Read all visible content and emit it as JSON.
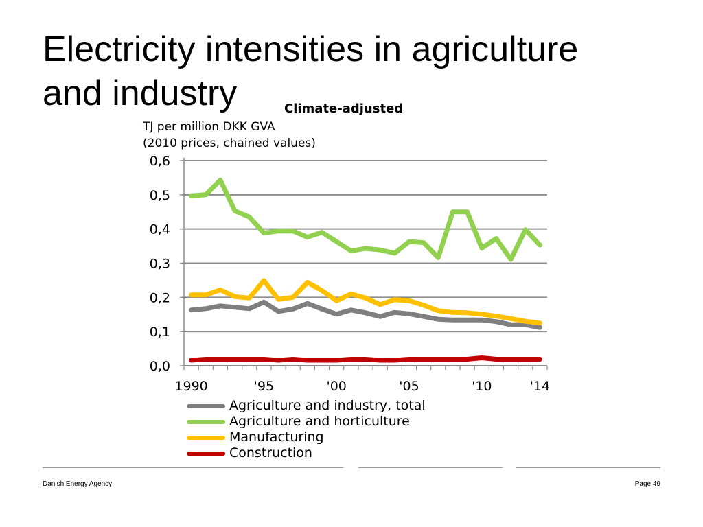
{
  "slide": {
    "title_line1": "Electricity intensities in agriculture",
    "title_line2": "and industry",
    "subtitle": "Climate-adjusted",
    "unit_line1": "TJ per million DKK GVA",
    "unit_line2": "(2010 prices, chained values)"
  },
  "footer": {
    "left": "Danish Energy Agency",
    "right": "Page 49"
  },
  "chart_data": {
    "type": "line",
    "title": "Climate-adjusted",
    "ylabel": "TJ per million DKK GVA (2010 prices, chained values)",
    "xlabel": "",
    "ylim": [
      0,
      0.6
    ],
    "grid": true,
    "legend_position": "bottom",
    "x": [
      1990,
      1991,
      1992,
      1993,
      1994,
      1995,
      1996,
      1997,
      1998,
      1999,
      2000,
      2001,
      2002,
      2003,
      2004,
      2005,
      2006,
      2007,
      2008,
      2009,
      2010,
      2011,
      2012,
      2013,
      2014
    ],
    "y_ticks": [
      {
        "value": 0.6,
        "label": "0,6"
      },
      {
        "value": 0.5,
        "label": "0,5"
      },
      {
        "value": 0.4,
        "label": "0,4"
      },
      {
        "value": 0.3,
        "label": "0,3"
      },
      {
        "value": 0.2,
        "label": "0,2"
      },
      {
        "value": 0.1,
        "label": "0,1"
      },
      {
        "value": 0.0,
        "label": "0,0"
      }
    ],
    "x_ticks": [
      {
        "value": 1990,
        "label": "1990"
      },
      {
        "value": 1995,
        "label": "'95"
      },
      {
        "value": 2000,
        "label": "'00"
      },
      {
        "value": 2005,
        "label": "'05"
      },
      {
        "value": 2010,
        "label": "'10"
      },
      {
        "value": 2014,
        "label": "'14"
      }
    ],
    "series": [
      {
        "name": "Agriculture and industry, total",
        "color": "#7f7f7f",
        "values": [
          0.163,
          0.167,
          0.175,
          0.171,
          0.167,
          0.186,
          0.159,
          0.166,
          0.182,
          0.166,
          0.151,
          0.163,
          0.155,
          0.144,
          0.156,
          0.152,
          0.144,
          0.136,
          0.134,
          0.134,
          0.134,
          0.129,
          0.12,
          0.12,
          0.112
        ]
      },
      {
        "name": "Agriculture and horticulture",
        "color": "#92d050",
        "values": [
          0.497,
          0.5,
          0.543,
          0.453,
          0.435,
          0.388,
          0.394,
          0.394,
          0.376,
          0.39,
          0.363,
          0.336,
          0.343,
          0.339,
          0.329,
          0.363,
          0.36,
          0.316,
          0.45,
          0.45,
          0.344,
          0.372,
          0.311,
          0.398,
          0.353
        ]
      },
      {
        "name": "Manufacturing",
        "color": "#ffc000",
        "values": [
          0.207,
          0.207,
          0.222,
          0.202,
          0.198,
          0.249,
          0.194,
          0.2,
          0.244,
          0.22,
          0.19,
          0.21,
          0.198,
          0.179,
          0.193,
          0.19,
          0.177,
          0.161,
          0.156,
          0.155,
          0.151,
          0.145,
          0.138,
          0.13,
          0.125
        ]
      },
      {
        "name": "Construction",
        "color": "#c00000",
        "values": [
          0.016,
          0.019,
          0.019,
          0.019,
          0.019,
          0.019,
          0.016,
          0.019,
          0.016,
          0.016,
          0.016,
          0.019,
          0.019,
          0.016,
          0.016,
          0.019,
          0.019,
          0.019,
          0.019,
          0.019,
          0.023,
          0.019,
          0.019,
          0.019,
          0.019
        ]
      }
    ]
  }
}
